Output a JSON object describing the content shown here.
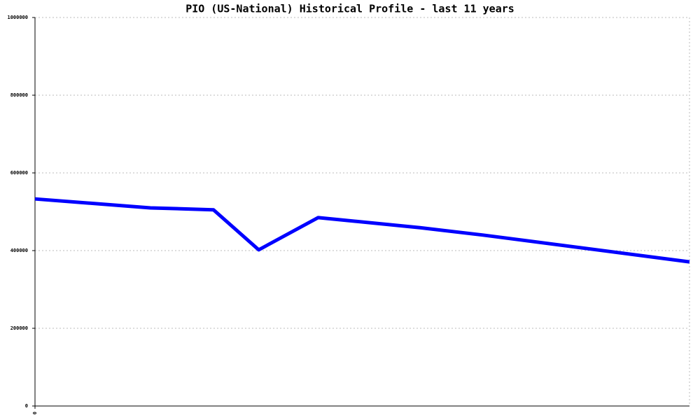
{
  "chart_data": {
    "type": "line",
    "title": "PIO (US-National) Historical Profile - last 11 years",
    "x": [
      0,
      1.94,
      3.0,
      3.76,
      4.76,
      6.47,
      7.53,
      11
    ],
    "series": [
      {
        "color": "#0000ff",
        "values": [
          533000,
          510000,
          505000,
          402000,
          485000,
          459000,
          440000,
          371000
        ]
      }
    ],
    "xlim": [
      0,
      11
    ],
    "xticks": [
      0
    ],
    "ylim": [
      0,
      1000000
    ],
    "yticks": [
      0,
      200000,
      400000,
      600000,
      800000,
      1000000
    ],
    "grid": true
  }
}
